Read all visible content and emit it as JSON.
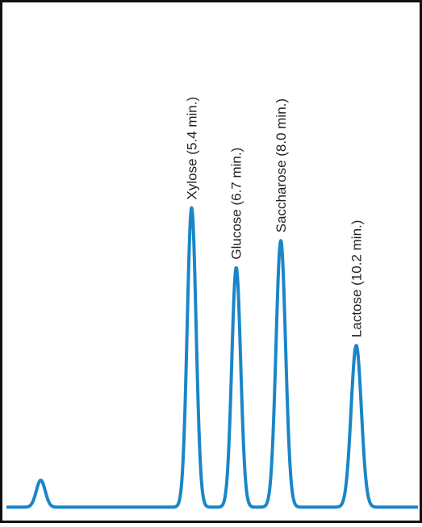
{
  "chart_data": {
    "type": "line",
    "title": "",
    "xlabel": "",
    "ylabel": "",
    "x_unit": "min",
    "xlim": [
      0,
      12
    ],
    "ylim": [
      0,
      100
    ],
    "grid": false,
    "legend": "none",
    "color": "#1a86c8",
    "baseline": 1.5,
    "peaks": [
      {
        "x": 1.0,
        "y": 9,
        "width": 0.13,
        "label": ""
      },
      {
        "x": 5.4,
        "y": 100,
        "width": 0.13,
        "label": "Xylose (5.4 min.)"
      },
      {
        "x": 6.7,
        "y": 80,
        "width": 0.13,
        "label": "Glucose (6.7 min.)"
      },
      {
        "x": 8.0,
        "y": 89,
        "width": 0.14,
        "label": "Saccharose (8.0 min.)"
      },
      {
        "x": 10.2,
        "y": 54,
        "width": 0.15,
        "label": "Lactose (10.2 min.)"
      }
    ]
  }
}
